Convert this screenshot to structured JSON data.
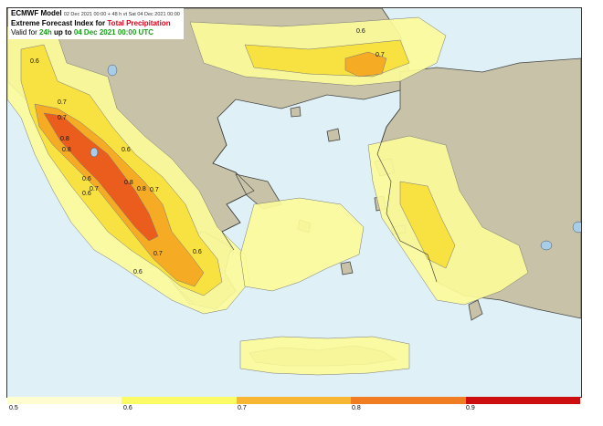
{
  "header": {
    "model": "ECMWF Model",
    "run_info": "02 Dec 2021 00:00 + 48 h vt Sat 04 Dec 2021 00:00",
    "title_prefix": "Extreme Forecast Index for",
    "title_highlight": "Total Precipitation",
    "valid_prefix": "Valid for",
    "valid_period": "24h",
    "valid_middle": "up to",
    "valid_time": "04 Dec 2021 00:00 UTC"
  },
  "colors": {
    "sea": "#dff1f7",
    "land": "#c8c3a8",
    "efi_06": "#fbfb9a",
    "efi_07": "#f7e03a",
    "efi_08": "#f5a623",
    "efi_09": "#e8561c",
    "title_accent": "#e0001a",
    "valid_accent": "#1b9e1b"
  },
  "contour_labels": [
    "0.6",
    "0.7",
    "0.7",
    "0.6",
    "0.7",
    "0.8",
    "0.8",
    "0.6",
    "0.6",
    "0.7",
    "0.6",
    "0.8",
    "0.8",
    "0.7",
    "0.7",
    "0.6",
    "0.6"
  ],
  "legend": {
    "colors": [
      "#fdfdd0",
      "#fbfb66",
      "#f7b733",
      "#f07d22",
      "#cc0e0e"
    ],
    "ticks": [
      "0.5",
      "0.6",
      "0.7",
      "0.8",
      "0.9"
    ]
  }
}
